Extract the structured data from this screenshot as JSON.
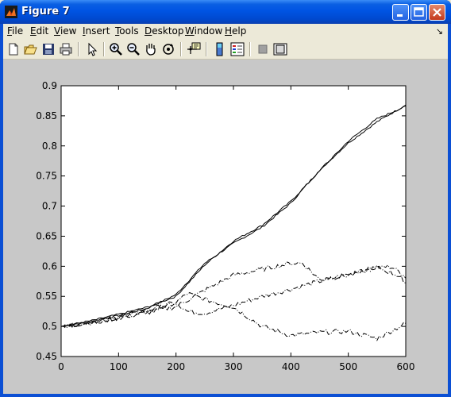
{
  "window": {
    "title": "Figure 7"
  },
  "menubar": {
    "items": [
      {
        "label": "File",
        "ul": "F",
        "rest": "ile"
      },
      {
        "label": "Edit",
        "ul": "E",
        "rest": "dit"
      },
      {
        "label": "View",
        "ul": "V",
        "rest": "iew"
      },
      {
        "label": "Insert",
        "ul": "I",
        "rest": "nsert"
      },
      {
        "label": "Tools",
        "ul": "T",
        "rest": "ools"
      },
      {
        "label": "Desktop",
        "ul": "D",
        "rest": "esktop"
      },
      {
        "label": "Window",
        "ul": "W",
        "rest": "indow"
      },
      {
        "label": "Help",
        "ul": "H",
        "rest": "elp"
      }
    ],
    "dock_arrow": "↘"
  },
  "toolbar": {
    "tools": [
      "new-file-icon",
      "open-file-icon",
      "save-icon",
      "print-icon",
      "pointer-icon",
      "zoom-in-icon",
      "zoom-out-icon",
      "pan-hand-icon",
      "rotate-3d-icon",
      "data-cursor-icon",
      "colorbar-icon",
      "legend-icon",
      "hide-plot-tools-icon",
      "show-plot-tools-icon"
    ]
  },
  "colors": {
    "figure_bg": "#C8C8C8",
    "axes_bg": "#FFFFFF",
    "line": "#000000"
  },
  "chart_data": {
    "type": "line",
    "title": "",
    "xlabel": "",
    "ylabel": "",
    "xlim": [
      0,
      600
    ],
    "ylim": [
      0.45,
      0.9
    ],
    "xticks": [
      "0",
      "100",
      "200",
      "300",
      "400",
      "500",
      "600"
    ],
    "yticks": [
      "0.45",
      "0.5",
      "0.55",
      "0.6",
      "0.65",
      "0.7",
      "0.75",
      "0.8",
      "0.85",
      "0.9"
    ],
    "grid": false,
    "legend": "none",
    "series": [
      {
        "style": "solid",
        "x": [
          0,
          50,
          100,
          150,
          200,
          250,
          300,
          350,
          400,
          450,
          500,
          550,
          600
        ],
        "y": [
          0.5,
          0.508,
          0.518,
          0.53,
          0.553,
          0.605,
          0.638,
          0.665,
          0.705,
          0.76,
          0.805,
          0.84,
          0.868
        ]
      },
      {
        "style": "solid",
        "x": [
          0,
          50,
          100,
          150,
          200,
          250,
          300,
          350,
          400,
          450,
          500,
          550,
          600
        ],
        "y": [
          0.5,
          0.509,
          0.52,
          0.532,
          0.55,
          0.602,
          0.642,
          0.668,
          0.708,
          0.758,
          0.808,
          0.845,
          0.866
        ]
      },
      {
        "style": "dashdot",
        "x": [
          0,
          50,
          100,
          150,
          200,
          220,
          250,
          300,
          350,
          400,
          450,
          500,
          550,
          580,
          600
        ],
        "y": [
          0.5,
          0.506,
          0.515,
          0.525,
          0.54,
          0.525,
          0.522,
          0.535,
          0.55,
          0.562,
          0.575,
          0.587,
          0.598,
          0.6,
          0.572
        ]
      },
      {
        "style": "dashdot",
        "x": [
          0,
          50,
          100,
          150,
          200,
          220,
          250,
          300,
          350,
          400,
          450,
          500,
          550,
          600
        ],
        "y": [
          0.5,
          0.507,
          0.516,
          0.527,
          0.54,
          0.555,
          0.545,
          0.532,
          0.5,
          0.485,
          0.49,
          0.492,
          0.48,
          0.505
        ]
      },
      {
        "style": "dashdot",
        "x": [
          0,
          50,
          100,
          150,
          200,
          250,
          300,
          350,
          400,
          420,
          450,
          500,
          550,
          600
        ],
        "y": [
          0.5,
          0.506,
          0.514,
          0.523,
          0.533,
          0.56,
          0.585,
          0.595,
          0.605,
          0.605,
          0.578,
          0.585,
          0.598,
          0.58
        ]
      }
    ]
  }
}
